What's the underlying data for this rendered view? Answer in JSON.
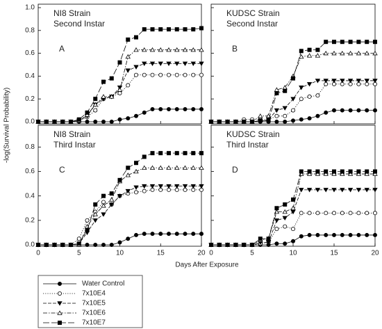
{
  "ylabel": "-log(Survival Probability)",
  "xlabel": "Days After Exposure",
  "legend": {
    "series": [
      {
        "name": "Water Control",
        "marker": "circle",
        "fill": "filled",
        "linestyle": "solid",
        "color": "#000000"
      },
      {
        "name": "7x10E4",
        "marker": "circle",
        "fill": "open",
        "linestyle": "dotted",
        "color": "#000000"
      },
      {
        "name": "7x10E5",
        "marker": "triangle-down",
        "fill": "filled",
        "linestyle": "dashed",
        "color": "#000000"
      },
      {
        "name": "7x10E6",
        "marker": "triangle-up",
        "fill": "open",
        "linestyle": "dashdot",
        "color": "#000000"
      },
      {
        "name": "7x10E7",
        "marker": "square",
        "fill": "filled",
        "linestyle": "longdash",
        "color": "#000000"
      }
    ]
  },
  "chart_data": [
    {
      "type": "line",
      "title": "NI8 Strain",
      "subtitle": "Second Instar",
      "annotation": "A",
      "x": [
        0,
        1,
        2,
        3,
        4,
        5,
        6,
        7,
        8,
        9,
        10,
        11,
        12,
        13,
        14,
        15,
        16,
        17,
        18,
        19,
        20
      ],
      "xlim": [
        0,
        20
      ],
      "xticks": [
        0,
        5,
        10,
        15,
        20
      ],
      "show_xtick_labels": false,
      "ylim": [
        0,
        1
      ],
      "yticks": [
        0.0,
        0.2,
        0.4,
        0.6,
        0.8,
        1.0
      ],
      "show_ytick_labels": true,
      "series": [
        {
          "values": [
            0,
            0,
            0,
            0,
            0,
            0,
            0,
            0,
            0,
            0,
            0.02,
            0.03,
            0.05,
            0.08,
            0.11,
            0.11,
            0.11,
            0.11,
            0.11,
            0.11,
            0.11
          ]
        },
        {
          "values": [
            0,
            0,
            0,
            0,
            0,
            0.01,
            0.04,
            0.1,
            0.2,
            0.22,
            0.25,
            0.32,
            0.41,
            0.41,
            0.41,
            0.41,
            0.41,
            0.41,
            0.41,
            0.41,
            0.41
          ]
        },
        {
          "values": [
            0,
            0,
            0,
            0,
            0,
            0.01,
            0.05,
            0.15,
            0.2,
            0.22,
            0.3,
            0.45,
            0.48,
            0.51,
            0.51,
            0.51,
            0.51,
            0.51,
            0.51,
            0.51,
            0.51
          ]
        },
        {
          "values": [
            0,
            0,
            0,
            0,
            0,
            0.01,
            0.06,
            0.15,
            0.22,
            0.22,
            0.28,
            0.57,
            0.63,
            0.63,
            0.63,
            0.63,
            0.63,
            0.63,
            0.63,
            0.63,
            0.63
          ]
        },
        {
          "values": [
            0,
            0,
            0,
            0,
            0,
            0.02,
            0.08,
            0.2,
            0.35,
            0.38,
            0.52,
            0.72,
            0.74,
            0.81,
            0.81,
            0.81,
            0.81,
            0.81,
            0.81,
            0.81,
            0.82
          ]
        }
      ]
    },
    {
      "type": "line",
      "title": "KUDSC Strain",
      "subtitle": "Second Instar",
      "annotation": "B",
      "x": [
        0,
        1,
        2,
        3,
        4,
        5,
        6,
        7,
        8,
        9,
        10,
        11,
        12,
        13,
        14,
        15,
        16,
        17,
        18,
        19,
        20
      ],
      "xlim": [
        0,
        20
      ],
      "xticks": [
        0,
        5,
        10,
        15,
        20
      ],
      "show_xtick_labels": false,
      "ylim": [
        0,
        1
      ],
      "yticks": [
        0.0,
        0.2,
        0.4,
        0.6,
        0.8,
        1.0
      ],
      "show_ytick_labels": false,
      "series": [
        {
          "values": [
            0,
            0,
            0,
            0,
            0,
            0,
            0,
            0,
            0,
            0,
            0.01,
            0.02,
            0.03,
            0.05,
            0.08,
            0.1,
            0.1,
            0.1,
            0.1,
            0.1,
            0.1
          ]
        },
        {
          "values": [
            0,
            0,
            0,
            0,
            0.02,
            0.02,
            0.02,
            0.02,
            0.05,
            0.05,
            0.1,
            0.2,
            0.22,
            0.23,
            0.33,
            0.33,
            0.33,
            0.33,
            0.33,
            0.33,
            0.33
          ]
        },
        {
          "values": [
            0,
            0,
            0,
            0,
            0,
            0,
            0,
            0.02,
            0.1,
            0.12,
            0.2,
            0.3,
            0.33,
            0.36,
            0.36,
            0.36,
            0.36,
            0.36,
            0.36,
            0.36,
            0.36
          ]
        },
        {
          "values": [
            0,
            0,
            0,
            0,
            0,
            0,
            0.05,
            0.05,
            0.28,
            0.3,
            0.4,
            0.57,
            0.58,
            0.58,
            0.6,
            0.6,
            0.6,
            0.6,
            0.6,
            0.6,
            0.6
          ]
        },
        {
          "values": [
            0,
            0,
            0,
            0,
            0,
            0,
            0.01,
            0.01,
            0.25,
            0.27,
            0.38,
            0.62,
            0.63,
            0.63,
            0.7,
            0.7,
            0.7,
            0.7,
            0.7,
            0.7,
            0.7
          ]
        }
      ]
    },
    {
      "type": "line",
      "title": "NI8 Strain",
      "subtitle": "Third Instar",
      "annotation": "C",
      "x": [
        0,
        1,
        2,
        3,
        4,
        5,
        6,
        7,
        8,
        9,
        10,
        11,
        12,
        13,
        14,
        15,
        16,
        17,
        18,
        19,
        20
      ],
      "xlim": [
        0,
        20
      ],
      "xticks": [
        0,
        5,
        10,
        15,
        20
      ],
      "show_xtick_labels": true,
      "ylim": [
        0,
        0.95
      ],
      "yticks": [
        0.0,
        0.2,
        0.4,
        0.6,
        0.8
      ],
      "show_ytick_labels": true,
      "series": [
        {
          "values": [
            0,
            0,
            0,
            0,
            0,
            0,
            0,
            0,
            0,
            0,
            0.02,
            0.05,
            0.08,
            0.09,
            0.09,
            0.09,
            0.09,
            0.09,
            0.09,
            0.09,
            0.09
          ]
        },
        {
          "values": [
            0,
            0,
            0,
            0,
            0,
            0.05,
            0.2,
            0.27,
            0.35,
            0.33,
            0.4,
            0.42,
            0.43,
            0.44,
            0.45,
            0.45,
            0.45,
            0.45,
            0.45,
            0.45,
            0.45
          ]
        },
        {
          "values": [
            0,
            0,
            0,
            0,
            0,
            0.01,
            0.1,
            0.2,
            0.25,
            0.33,
            0.4,
            0.44,
            0.47,
            0.48,
            0.48,
            0.48,
            0.48,
            0.48,
            0.48,
            0.48,
            0.48
          ]
        },
        {
          "values": [
            0,
            0,
            0,
            0,
            0,
            0,
            0.15,
            0.25,
            0.32,
            0.37,
            0.52,
            0.57,
            0.6,
            0.63,
            0.63,
            0.63,
            0.63,
            0.63,
            0.63,
            0.63,
            0.63
          ]
        },
        {
          "values": [
            0,
            0,
            0,
            0,
            0,
            0.01,
            0.12,
            0.33,
            0.4,
            0.42,
            0.53,
            0.63,
            0.67,
            0.72,
            0.75,
            0.75,
            0.75,
            0.75,
            0.75,
            0.75,
            0.75
          ]
        }
      ]
    },
    {
      "type": "line",
      "title": "KUDSC Strain",
      "subtitle": "Third Instar",
      "annotation": "D",
      "x": [
        0,
        1,
        2,
        3,
        4,
        5,
        6,
        7,
        8,
        9,
        10,
        11,
        12,
        13,
        14,
        15,
        16,
        17,
        18,
        19,
        20
      ],
      "xlim": [
        0,
        20
      ],
      "xticks": [
        0,
        5,
        10,
        15,
        20
      ],
      "show_xtick_labels": true,
      "ylim": [
        0,
        0.95
      ],
      "yticks": [
        0.0,
        0.2,
        0.4,
        0.6,
        0.8
      ],
      "show_ytick_labels": false,
      "series": [
        {
          "values": [
            0,
            0,
            0,
            0,
            0,
            0,
            0,
            0,
            0.01,
            0.01,
            0.03,
            0.07,
            0.08,
            0.08,
            0.08,
            0.08,
            0.08,
            0.08,
            0.08,
            0.08,
            0.08
          ]
        },
        {
          "values": [
            0,
            0,
            0,
            0,
            0,
            0,
            0.01,
            0.02,
            0.13,
            0.15,
            0.13,
            0.26,
            0.26,
            0.26,
            0.26,
            0.26,
            0.26,
            0.26,
            0.26,
            0.26,
            0.26
          ]
        },
        {
          "values": [
            0,
            0,
            0,
            0,
            0,
            0,
            0.02,
            0.02,
            0.2,
            0.22,
            0.27,
            0.45,
            0.45,
            0.45,
            0.45,
            0.45,
            0.45,
            0.45,
            0.45,
            0.45,
            0.45
          ]
        },
        {
          "values": [
            0,
            0,
            0,
            0,
            0,
            0,
            0.04,
            0.05,
            0.27,
            0.27,
            0.3,
            0.58,
            0.58,
            0.58,
            0.58,
            0.58,
            0.58,
            0.58,
            0.58,
            0.58,
            0.58
          ]
        },
        {
          "values": [
            0,
            0,
            0,
            0,
            0,
            0,
            0.05,
            0.05,
            0.3,
            0.33,
            0.37,
            0.6,
            0.6,
            0.6,
            0.6,
            0.6,
            0.6,
            0.6,
            0.6,
            0.6,
            0.6
          ]
        }
      ]
    }
  ]
}
